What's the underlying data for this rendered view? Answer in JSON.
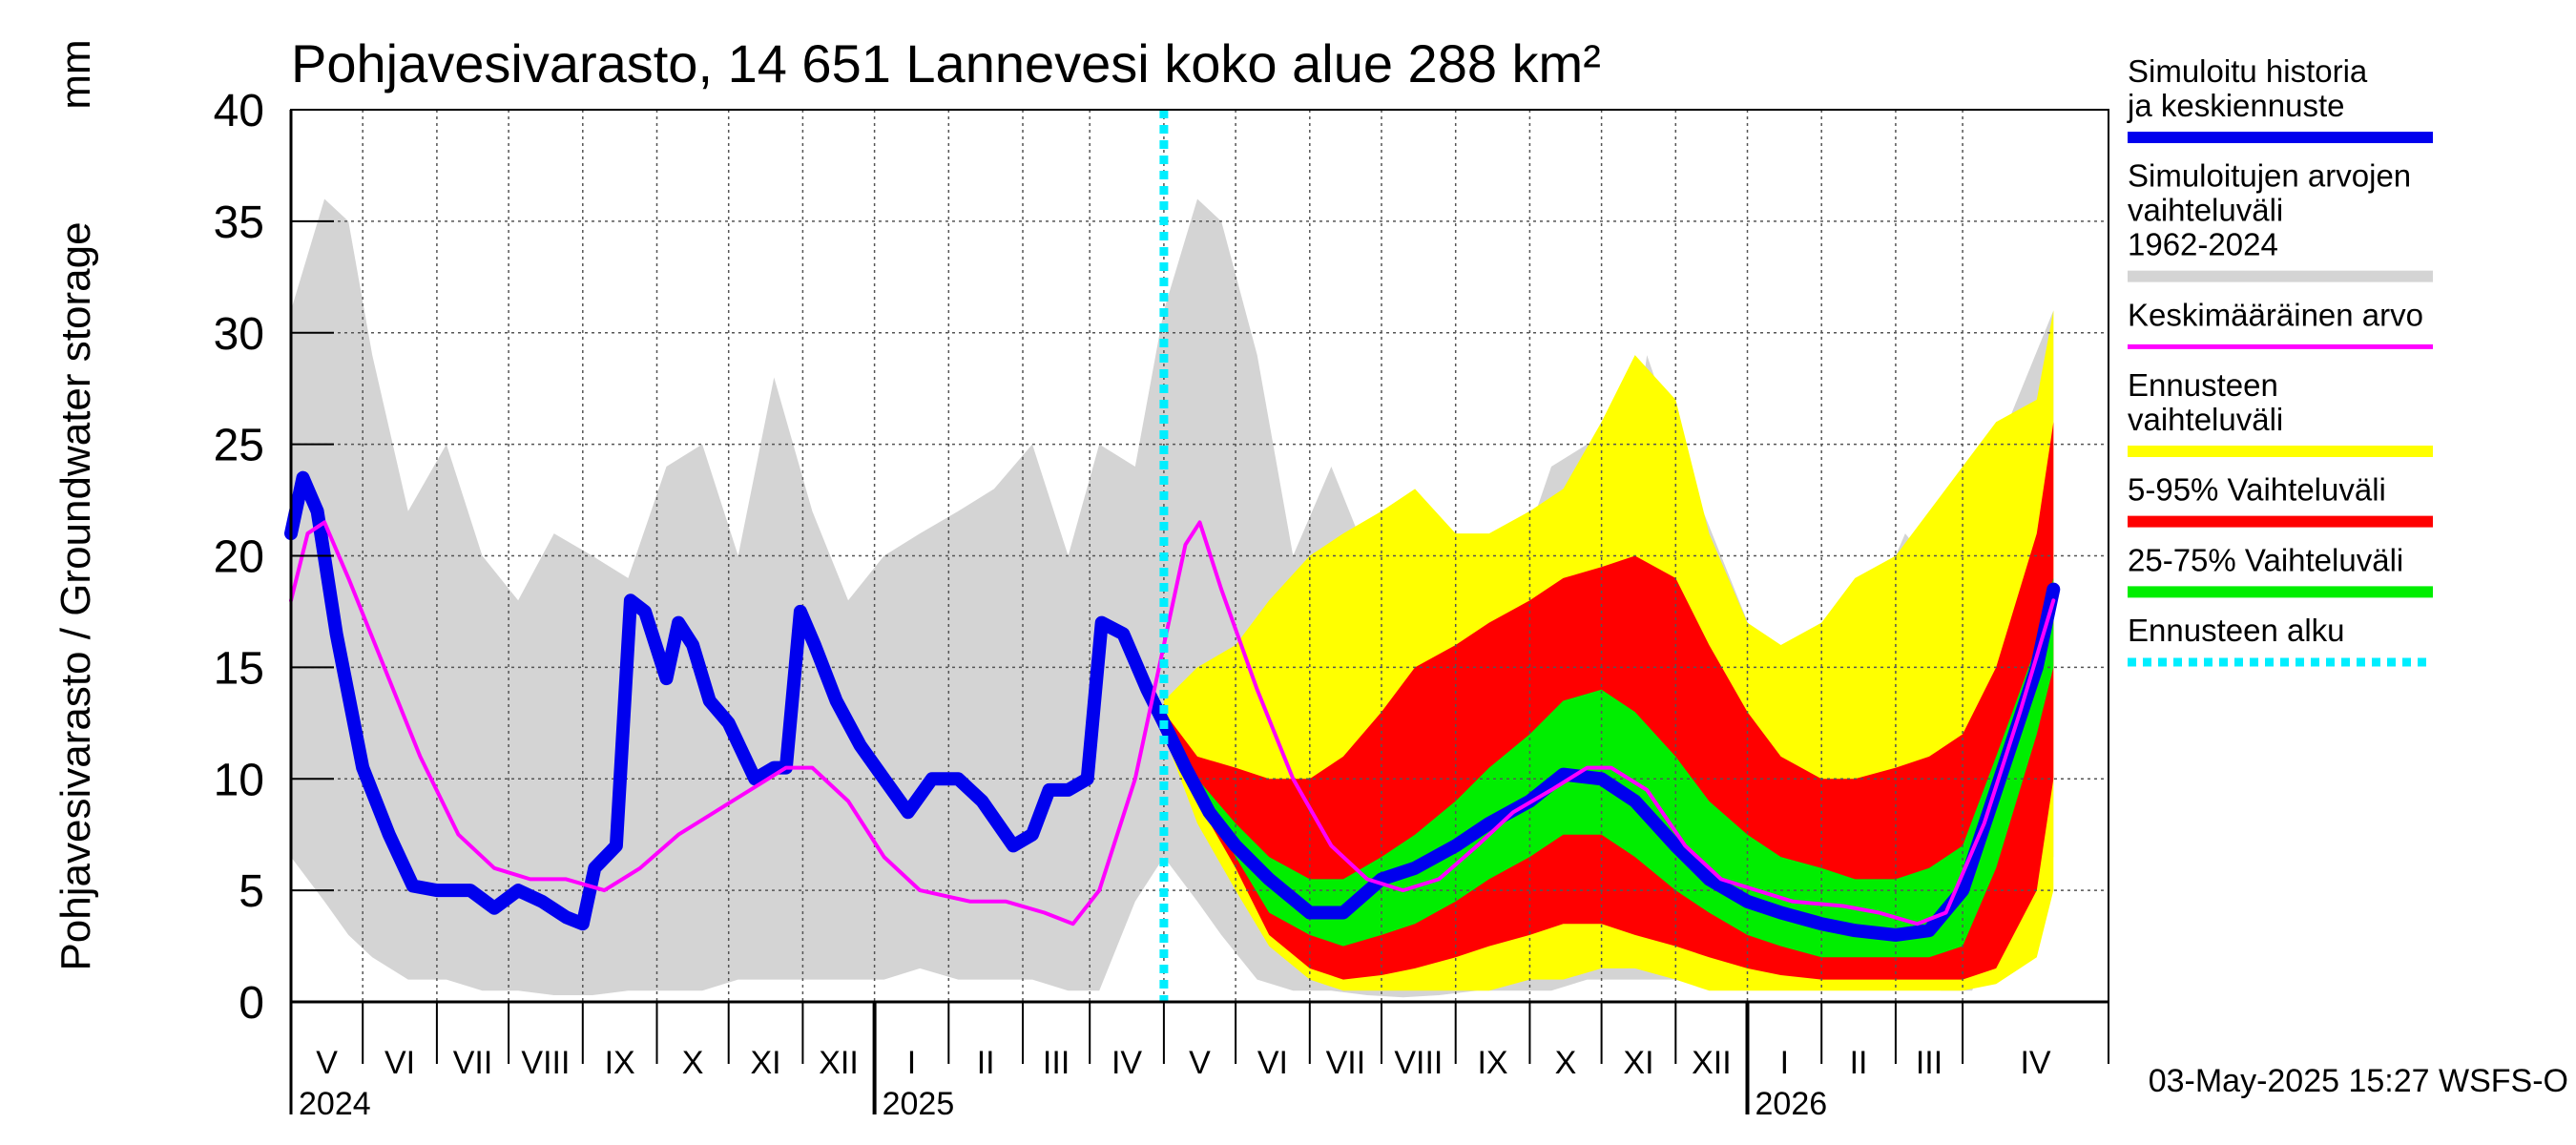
{
  "chart_data": {
    "type": "area",
    "title": "Pohjavesivarasto, 14 651 Lannevesi koko alue 288 km²",
    "ylabel": "Pohjavesivarasto / Groundwater storage",
    "yunit": "mm",
    "ylim": [
      0,
      40
    ],
    "yticks": [
      0,
      5,
      10,
      15,
      20,
      25,
      30,
      35,
      40
    ],
    "xlim": [
      "2024-04-01",
      "2026-05-01"
    ],
    "months": [
      {
        "label": "V",
        "start": "2024-04-01"
      },
      {
        "label": "VI",
        "start": "2024-05-01"
      },
      {
        "label": "VII",
        "start": "2024-06-01"
      },
      {
        "label": "VIII",
        "start": "2024-07-01"
      },
      {
        "label": "IX",
        "start": "2024-08-01"
      },
      {
        "label": "X",
        "start": "2024-09-01"
      },
      {
        "label": "XI",
        "start": "2024-10-01"
      },
      {
        "label": "XII",
        "start": "2024-11-01"
      },
      {
        "label": "I",
        "start": "2024-12-01"
      },
      {
        "label": "II",
        "start": "2025-01-01"
      },
      {
        "label": "III",
        "start": "2025-02-01"
      },
      {
        "label": "IV",
        "start": "2025-03-01"
      },
      {
        "label": "V",
        "start": "2025-04-01"
      },
      {
        "label": "VI",
        "start": "2025-05-01"
      },
      {
        "label": "VII",
        "start": "2025-06-01"
      },
      {
        "label": "VIII",
        "start": "2025-07-01"
      },
      {
        "label": "IX",
        "start": "2025-08-01"
      },
      {
        "label": "X",
        "start": "2025-09-01"
      },
      {
        "label": "XI",
        "start": "2025-10-01"
      },
      {
        "label": "XII",
        "start": "2025-11-01"
      },
      {
        "label": "I",
        "start": "2025-12-01"
      },
      {
        "label": "II",
        "start": "2026-01-01"
      },
      {
        "label": "III",
        "start": "2026-02-01"
      },
      {
        "label": "IV",
        "start": "2026-03-01"
      }
    ],
    "years": [
      {
        "label": "2024",
        "date": "2024-04-01"
      },
      {
        "label": "2025",
        "date": "2024-12-01"
      },
      {
        "label": "2026",
        "date": "2025-12-01"
      }
    ],
    "year_boundaries": [
      "2024-12-01",
      "2025-12-01"
    ],
    "forecast_start": "2025-04-01",
    "grid": true,
    "legend_position": "right",
    "legend": [
      {
        "label": "Simuloitu historia ja keskiennuste",
        "color": "#0000ee",
        "kind": "line"
      },
      {
        "label": "Simuloitujen arvojen vaihteluväli 1962-2024",
        "color": "#d4d4d4",
        "kind": "line"
      },
      {
        "label": "Keskimääräinen arvo",
        "color": "#ff00ff",
        "kind": "line"
      },
      {
        "label": "Ennusteen vaihteluväli",
        "color": "#ffff00",
        "kind": "band"
      },
      {
        "label": "5-95% Vaihteluväli",
        "color": "#ff0000",
        "kind": "band"
      },
      {
        "label": "25-75% Vaihteluväli",
        "color": "#00ee00",
        "kind": "band"
      },
      {
        "label": "Ennusteen alku",
        "color": "#00eeff",
        "kind": "dashed"
      }
    ],
    "footer": "03-May-2025 15:27 WSFS-O",
    "series": [
      {
        "name": "Simuloitu historia ja keskiennuste",
        "color": "#0000ee",
        "points": [
          [
            "2024-04-01",
            21.0
          ],
          [
            "2024-04-06",
            23.5
          ],
          [
            "2024-04-12",
            22.0
          ],
          [
            "2024-04-20",
            16.5
          ],
          [
            "2024-05-01",
            10.5
          ],
          [
            "2024-05-12",
            7.5
          ],
          [
            "2024-05-22",
            5.2
          ],
          [
            "2024-06-01",
            5.0
          ],
          [
            "2024-06-15",
            5.0
          ],
          [
            "2024-06-25",
            4.2
          ],
          [
            "2024-07-05",
            5.0
          ],
          [
            "2024-07-15",
            4.5
          ],
          [
            "2024-07-25",
            3.8
          ],
          [
            "2024-08-01",
            3.5
          ],
          [
            "2024-08-06",
            6.0
          ],
          [
            "2024-08-15",
            7.0
          ],
          [
            "2024-08-21",
            18.0
          ],
          [
            "2024-08-27",
            17.5
          ],
          [
            "2024-09-05",
            14.5
          ],
          [
            "2024-09-10",
            17.0
          ],
          [
            "2024-09-16",
            16.0
          ],
          [
            "2024-09-23",
            13.5
          ],
          [
            "2024-10-01",
            12.5
          ],
          [
            "2024-10-12",
            10.0
          ],
          [
            "2024-10-20",
            10.5
          ],
          [
            "2024-10-25",
            10.5
          ],
          [
            "2024-10-31",
            17.5
          ],
          [
            "2024-11-06",
            16.0
          ],
          [
            "2024-11-15",
            13.5
          ],
          [
            "2024-11-25",
            11.5
          ],
          [
            "2024-12-05",
            10.0
          ],
          [
            "2024-12-15",
            8.5
          ],
          [
            "2024-12-25",
            10.0
          ],
          [
            "2025-01-05",
            10.0
          ],
          [
            "2025-01-15",
            9.0
          ],
          [
            "2025-01-28",
            7.0
          ],
          [
            "2025-02-05",
            7.5
          ],
          [
            "2025-02-12",
            9.5
          ],
          [
            "2025-02-20",
            9.5
          ],
          [
            "2025-02-28",
            10.0
          ],
          [
            "2025-03-06",
            17.0
          ],
          [
            "2025-03-15",
            16.5
          ],
          [
            "2025-03-25",
            14.0
          ],
          [
            "2025-04-01",
            12.5
          ],
          [
            "2025-04-10",
            10.5
          ],
          [
            "2025-04-20",
            8.5
          ],
          [
            "2025-05-01",
            7.0
          ],
          [
            "2025-05-15",
            5.5
          ],
          [
            "2025-06-01",
            4.0
          ],
          [
            "2025-06-15",
            4.0
          ],
          [
            "2025-07-01",
            5.5
          ],
          [
            "2025-07-15",
            6.0
          ],
          [
            "2025-08-01",
            7.0
          ],
          [
            "2025-08-15",
            8.0
          ],
          [
            "2025-09-01",
            9.0
          ],
          [
            "2025-09-15",
            10.2
          ],
          [
            "2025-10-01",
            10.0
          ],
          [
            "2025-10-15",
            9.0
          ],
          [
            "2025-11-01",
            7.0
          ],
          [
            "2025-11-15",
            5.5
          ],
          [
            "2025-12-01",
            4.5
          ],
          [
            "2025-12-15",
            4.0
          ],
          [
            "2026-01-01",
            3.5
          ],
          [
            "2026-01-15",
            3.2
          ],
          [
            "2026-02-01",
            3.0
          ],
          [
            "2026-02-15",
            3.2
          ],
          [
            "2026-03-01",
            5.0
          ],
          [
            "2026-03-15",
            9.5
          ],
          [
            "2026-04-01",
            15.0
          ],
          [
            "2026-04-08",
            18.5
          ]
        ]
      },
      {
        "name": "Keskimääräinen arvo",
        "color": "#ff00ff",
        "points": [
          [
            "2024-04-01",
            18.0
          ],
          [
            "2024-04-08",
            21.0
          ],
          [
            "2024-04-15",
            21.5
          ],
          [
            "2024-04-25",
            19.0
          ],
          [
            "2024-05-10",
            15.0
          ],
          [
            "2024-05-25",
            11.0
          ],
          [
            "2024-06-10",
            7.5
          ],
          [
            "2024-06-25",
            6.0
          ],
          [
            "2024-07-10",
            5.5
          ],
          [
            "2024-07-25",
            5.5
          ],
          [
            "2024-08-10",
            5.0
          ],
          [
            "2024-08-25",
            6.0
          ],
          [
            "2024-09-10",
            7.5
          ],
          [
            "2024-09-25",
            8.5
          ],
          [
            "2024-10-10",
            9.5
          ],
          [
            "2024-10-25",
            10.5
          ],
          [
            "2024-11-05",
            10.5
          ],
          [
            "2024-11-20",
            9.0
          ],
          [
            "2024-12-05",
            6.5
          ],
          [
            "2024-12-20",
            5.0
          ],
          [
            "2025-01-10",
            4.5
          ],
          [
            "2025-01-25",
            4.5
          ],
          [
            "2025-02-10",
            4.0
          ],
          [
            "2025-02-22",
            3.5
          ],
          [
            "2025-03-05",
            5.0
          ],
          [
            "2025-03-20",
            10.0
          ],
          [
            "2025-04-01",
            16.0
          ],
          [
            "2025-04-10",
            20.5
          ],
          [
            "2025-04-16",
            21.5
          ],
          [
            "2025-04-25",
            18.5
          ],
          [
            "2025-05-10",
            14.0
          ],
          [
            "2025-05-25",
            10.0
          ],
          [
            "2025-06-10",
            7.0
          ],
          [
            "2025-06-25",
            5.5
          ],
          [
            "2025-07-10",
            5.0
          ],
          [
            "2025-07-25",
            5.5
          ],
          [
            "2025-08-10",
            7.0
          ],
          [
            "2025-08-25",
            8.5
          ],
          [
            "2025-09-10",
            9.5
          ],
          [
            "2025-09-25",
            10.5
          ],
          [
            "2025-10-05",
            10.5
          ],
          [
            "2025-10-20",
            9.5
          ],
          [
            "2025-11-05",
            7.0
          ],
          [
            "2025-11-20",
            5.5
          ],
          [
            "2025-12-05",
            5.0
          ],
          [
            "2025-12-20",
            4.5
          ],
          [
            "2026-01-10",
            4.3
          ],
          [
            "2026-01-25",
            4.0
          ],
          [
            "2026-02-10",
            3.5
          ],
          [
            "2026-02-22",
            4.0
          ],
          [
            "2026-03-10",
            8.0
          ],
          [
            "2026-03-25",
            13.0
          ],
          [
            "2026-04-08",
            18.0
          ]
        ]
      }
    ],
    "bands": [
      {
        "name": "Simuloitujen arvojen vaihteluväli 1962-2024",
        "color": "#d4d4d4",
        "dates": [
          "2024-04-01",
          "2024-04-15",
          "2024-04-25",
          "2024-05-05",
          "2024-05-20",
          "2024-06-05",
          "2024-06-20",
          "2024-07-05",
          "2024-07-20",
          "2024-08-05",
          "2024-08-20",
          "2024-09-05",
          "2024-09-20",
          "2024-10-05",
          "2024-10-20",
          "2024-11-05",
          "2024-11-20",
          "2024-12-05",
          "2024-12-20",
          "2025-01-05",
          "2025-01-20",
          "2025-02-05",
          "2025-02-20",
          "2025-03-05",
          "2025-03-20",
          "2025-04-01",
          "2025-04-15",
          "2025-04-25",
          "2025-05-10",
          "2025-05-25",
          "2025-06-10",
          "2025-06-25",
          "2025-07-10",
          "2025-07-25",
          "2025-08-10",
          "2025-08-25",
          "2025-09-10",
          "2025-09-25",
          "2025-10-10",
          "2025-10-20",
          "2025-11-05",
          "2025-11-20",
          "2025-12-05",
          "2025-12-20",
          "2026-01-05",
          "2026-01-20",
          "2026-02-05",
          "2026-02-20",
          "2026-03-05",
          "2026-03-20",
          "2026-04-08"
        ],
        "upper": [
          31,
          36,
          35,
          29,
          22,
          25,
          20,
          18,
          21,
          20,
          19,
          24,
          25,
          20,
          28,
          22,
          18,
          20,
          21,
          22,
          23,
          25,
          20,
          25,
          24,
          31,
          36,
          35,
          29,
          20,
          24,
          20,
          18,
          21,
          20,
          19,
          24,
          25,
          21,
          29,
          24,
          20,
          16,
          14,
          15,
          17,
          21,
          19,
          22,
          26,
          31
        ],
        "lower": [
          6.5,
          4.5,
          3.0,
          2.0,
          1.0,
          1.0,
          0.5,
          0.5,
          0.3,
          0.3,
          0.5,
          0.5,
          0.5,
          1.0,
          1.0,
          1.0,
          1.0,
          1.0,
          1.5,
          1.0,
          1.0,
          1.0,
          0.5,
          0.5,
          4.5,
          6.5,
          4.5,
          3.0,
          1.0,
          0.5,
          0.5,
          0.3,
          0.2,
          0.3,
          0.5,
          0.5,
          0.5,
          1.0,
          1.0,
          1.0,
          1.0,
          1.0,
          1.5,
          1.0,
          1.0,
          1.0,
          1.0,
          0.5,
          0.5,
          4.5,
          6.5
        ]
      },
      {
        "name": "Ennusteen vaihteluväli",
        "color": "#ffff00",
        "dates": [
          "2025-04-01",
          "2025-04-15",
          "2025-05-01",
          "2025-05-15",
          "2025-06-01",
          "2025-06-15",
          "2025-07-01",
          "2025-07-15",
          "2025-08-01",
          "2025-08-15",
          "2025-09-01",
          "2025-09-15",
          "2025-10-01",
          "2025-10-15",
          "2025-11-01",
          "2025-11-15",
          "2025-12-01",
          "2025-12-15",
          "2026-01-01",
          "2026-01-15",
          "2026-02-01",
          "2026-02-15",
          "2026-03-01",
          "2026-03-15",
          "2026-04-01",
          "2026-04-08"
        ],
        "upper": [
          13.5,
          15,
          16,
          18,
          20,
          21,
          22,
          23,
          21,
          21,
          22,
          23,
          26,
          29,
          27,
          21,
          17,
          16,
          17,
          19,
          20,
          22,
          24,
          26,
          27,
          31
        ],
        "lower": [
          12,
          8,
          5,
          2.5,
          1,
          0.5,
          0.5,
          0.5,
          0.5,
          0.5,
          1,
          1,
          1.5,
          1.5,
          1,
          0.5,
          0.5,
          0.5,
          0.5,
          0.5,
          0.5,
          0.5,
          0.5,
          0.8,
          2,
          5
        ]
      },
      {
        "name": "5-95% Vaihteluväli",
        "color": "#ff0000",
        "dates": [
          "2025-04-01",
          "2025-04-15",
          "2025-05-01",
          "2025-05-15",
          "2025-06-01",
          "2025-06-15",
          "2025-07-01",
          "2025-07-15",
          "2025-08-01",
          "2025-08-15",
          "2025-09-01",
          "2025-09-15",
          "2025-10-01",
          "2025-10-15",
          "2025-11-01",
          "2025-11-15",
          "2025-12-01",
          "2025-12-15",
          "2026-01-01",
          "2026-01-15",
          "2026-02-01",
          "2026-02-15",
          "2026-03-01",
          "2026-03-15",
          "2026-04-01",
          "2026-04-08"
        ],
        "upper": [
          13,
          11,
          10.5,
          10,
          10,
          11,
          13,
          15,
          16,
          17,
          18,
          19,
          19.5,
          20,
          19,
          16,
          13,
          11,
          10,
          10,
          10.5,
          11,
          12,
          15,
          21,
          26
        ],
        "lower": [
          12,
          9,
          6,
          3,
          1.5,
          1.0,
          1.2,
          1.5,
          2,
          2.5,
          3,
          3.5,
          3.5,
          3.0,
          2.5,
          2.0,
          1.5,
          1.2,
          1.0,
          1.0,
          1.0,
          1.0,
          1.0,
          1.5,
          5,
          10
        ]
      },
      {
        "name": "25-75% Vaihteluväli",
        "color": "#00ee00",
        "dates": [
          "2025-04-01",
          "2025-04-15",
          "2025-05-01",
          "2025-05-15",
          "2025-06-01",
          "2025-06-15",
          "2025-07-01",
          "2025-07-15",
          "2025-08-01",
          "2025-08-15",
          "2025-09-01",
          "2025-09-15",
          "2025-10-01",
          "2025-10-15",
          "2025-11-01",
          "2025-11-15",
          "2025-12-01",
          "2025-12-15",
          "2026-01-01",
          "2026-01-15",
          "2026-02-01",
          "2026-02-15",
          "2026-03-01",
          "2026-03-15",
          "2026-04-01",
          "2026-04-08"
        ],
        "upper": [
          12.5,
          10,
          8,
          6.5,
          5.5,
          5.5,
          6.5,
          7.5,
          9,
          10.5,
          12,
          13.5,
          14,
          13,
          11,
          9,
          7.5,
          6.5,
          6,
          5.5,
          5.5,
          6,
          7,
          11,
          16,
          19
        ],
        "lower": [
          12.2,
          9.5,
          6.5,
          4,
          3,
          2.5,
          3,
          3.5,
          4.5,
          5.5,
          6.5,
          7.5,
          7.5,
          6.5,
          5,
          4,
          3,
          2.5,
          2.0,
          2.0,
          2.0,
          2.0,
          2.5,
          6,
          12,
          15
        ]
      }
    ]
  }
}
